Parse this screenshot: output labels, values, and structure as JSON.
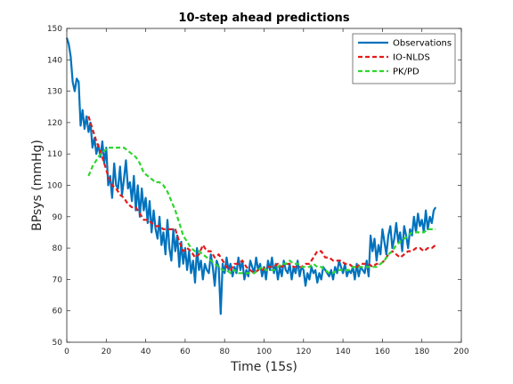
{
  "chart_data": {
    "type": "line",
    "title": "10-step ahead predictions",
    "xlabel": "Time (15s)",
    "ylabel": "BPsys (mmHg)",
    "xlim": [
      0,
      200
    ],
    "ylim": [
      50,
      150
    ],
    "xticks": [
      0,
      20,
      40,
      60,
      80,
      100,
      120,
      140,
      160,
      180,
      200
    ],
    "yticks": [
      50,
      60,
      70,
      80,
      90,
      100,
      110,
      120,
      130,
      140,
      150
    ],
    "grid": false,
    "legend_position": "top-right",
    "series": [
      {
        "name": "Observations",
        "color": "#0072BD",
        "style": "solid",
        "x": [
          0,
          1,
          2,
          3,
          4,
          5,
          6,
          7,
          8,
          9,
          10,
          11,
          12,
          13,
          14,
          15,
          16,
          17,
          18,
          19,
          20,
          21,
          22,
          23,
          24,
          25,
          26,
          27,
          28,
          29,
          30,
          31,
          32,
          33,
          34,
          35,
          36,
          37,
          38,
          39,
          40,
          41,
          42,
          43,
          44,
          45,
          46,
          47,
          48,
          49,
          50,
          51,
          52,
          53,
          54,
          55,
          56,
          57,
          58,
          59,
          60,
          61,
          62,
          63,
          64,
          65,
          66,
          67,
          68,
          69,
          70,
          71,
          72,
          73,
          74,
          75,
          76,
          77,
          78,
          79,
          80,
          81,
          82,
          83,
          84,
          85,
          86,
          87,
          88,
          89,
          90,
          91,
          92,
          93,
          94,
          95,
          96,
          97,
          98,
          99,
          100,
          101,
          102,
          103,
          104,
          105,
          106,
          107,
          108,
          109,
          110,
          111,
          112,
          113,
          114,
          115,
          116,
          117,
          118,
          119,
          120,
          121,
          122,
          123,
          124,
          125,
          126,
          127,
          128,
          129,
          130,
          131,
          132,
          133,
          134,
          135,
          136,
          137,
          138,
          139,
          140,
          141,
          142,
          143,
          144,
          145,
          146,
          147,
          148,
          149,
          150,
          151,
          152,
          153,
          154,
          155,
          156,
          157,
          158,
          159,
          160,
          161,
          162,
          163,
          164,
          165,
          166,
          167,
          168,
          169,
          170,
          171,
          172,
          173,
          174,
          175,
          176,
          177,
          178,
          179,
          180,
          181,
          182,
          183,
          184,
          185,
          186,
          187
        ],
        "y": [
          147,
          145,
          141,
          133,
          130,
          134,
          133,
          119,
          124,
          118,
          122,
          117,
          120,
          112,
          115,
          110,
          113,
          109,
          114,
          107,
          112,
          100,
          103,
          96,
          107,
          100,
          99,
          106,
          97,
          102,
          108,
          99,
          101,
          95,
          103,
          92,
          100,
          90,
          99,
          92,
          96,
          88,
          95,
          85,
          92,
          86,
          83,
          90,
          81,
          85,
          78,
          89,
          80,
          76,
          86,
          79,
          84,
          74,
          82,
          75,
          80,
          73,
          79,
          72,
          76,
          69,
          80,
          73,
          76,
          70,
          75,
          73,
          72,
          78,
          74,
          68,
          76,
          74,
          59,
          75,
          72,
          77,
          73,
          75,
          71,
          74,
          72,
          77,
          73,
          76,
          70,
          73,
          71,
          76,
          74,
          72,
          77,
          73,
          75,
          71,
          74,
          70,
          76,
          73,
          77,
          72,
          75,
          70,
          74,
          71,
          76,
          73,
          72,
          75,
          70,
          74,
          72,
          76,
          71,
          74,
          73,
          68,
          72,
          70,
          74,
          72,
          73,
          69,
          72,
          70,
          74,
          73,
          72,
          71,
          73,
          70,
          74,
          72,
          76,
          74,
          72,
          75,
          71,
          73,
          72,
          74,
          70,
          75,
          71,
          74,
          73,
          72,
          76,
          71,
          84,
          79,
          83,
          76,
          81,
          78,
          86,
          82,
          78,
          84,
          87,
          80,
          83,
          88,
          82,
          85,
          79,
          87,
          84,
          80,
          86,
          84,
          90,
          85,
          91,
          87,
          89,
          85,
          92,
          86,
          90,
          88,
          92,
          93
        ]
      },
      {
        "name": "IO-NLDS",
        "color": "#E31A1C",
        "style": "dashed",
        "x": [
          11,
          13,
          15,
          17,
          19,
          21,
          23,
          25,
          27,
          29,
          31,
          33,
          35,
          37,
          39,
          41,
          43,
          45,
          47,
          49,
          51,
          53,
          55,
          57,
          59,
          61,
          63,
          65,
          67,
          69,
          71,
          73,
          75,
          77,
          79,
          81,
          83,
          85,
          87,
          89,
          91,
          93,
          95,
          97,
          99,
          101,
          103,
          105,
          107,
          109,
          111,
          113,
          115,
          117,
          119,
          121,
          123,
          125,
          127,
          129,
          131,
          133,
          135,
          137,
          139,
          141,
          143,
          145,
          147,
          149,
          151,
          153,
          155,
          157,
          159,
          161,
          163,
          165,
          167,
          169,
          171,
          173,
          175,
          177,
          179,
          181,
          183,
          185,
          187
        ],
        "y": [
          122,
          118,
          114,
          111,
          107,
          103,
          100,
          99,
          97,
          96,
          94,
          93,
          93,
          91,
          89,
          89,
          88,
          87,
          87,
          86,
          86,
          86,
          86,
          82,
          79,
          80,
          79,
          77,
          78,
          81,
          79,
          79,
          77,
          78,
          76,
          74,
          73,
          75,
          75,
          76,
          74,
          73,
          72,
          73,
          73,
          74,
          74,
          74,
          75,
          74,
          75,
          75,
          74,
          74,
          74,
          75,
          75,
          77,
          79,
          79,
          77,
          77,
          76,
          76,
          76,
          75,
          75,
          74,
          74,
          75,
          75,
          75,
          74,
          75,
          75,
          76,
          78,
          79,
          78,
          77,
          78,
          79,
          79,
          80,
          80,
          79,
          80,
          80,
          81
        ]
      },
      {
        "name": "PK/PD",
        "color": "#2DD62D",
        "style": "dashed",
        "x": [
          11,
          13,
          15,
          17,
          19,
          21,
          23,
          25,
          27,
          29,
          31,
          33,
          35,
          37,
          39,
          41,
          43,
          45,
          47,
          49,
          51,
          53,
          55,
          57,
          59,
          61,
          63,
          65,
          67,
          69,
          71,
          73,
          75,
          77,
          79,
          81,
          83,
          85,
          87,
          89,
          91,
          93,
          95,
          97,
          99,
          101,
          103,
          105,
          107,
          109,
          111,
          113,
          115,
          117,
          119,
          121,
          123,
          125,
          127,
          129,
          131,
          133,
          135,
          137,
          139,
          141,
          143,
          145,
          147,
          149,
          151,
          153,
          155,
          157,
          159,
          161,
          163,
          165,
          167,
          169,
          171,
          173,
          175,
          177,
          179,
          181,
          183,
          185,
          187
        ],
        "y": [
          103,
          106,
          108,
          110,
          111,
          112,
          112,
          112,
          112,
          112,
          111,
          110,
          109,
          107,
          104,
          103,
          102,
          101,
          101,
          100,
          98,
          95,
          92,
          88,
          84,
          82,
          80,
          79,
          79,
          78,
          77,
          76,
          75,
          74,
          73,
          73,
          72,
          73,
          72,
          72,
          72,
          72,
          72,
          73,
          74,
          73,
          73,
          73,
          74,
          75,
          75,
          76,
          75,
          75,
          74,
          74,
          74,
          75,
          74,
          74,
          73,
          72,
          72,
          73,
          73,
          73,
          73,
          74,
          74,
          74,
          74,
          74,
          74,
          74,
          75,
          76,
          78,
          79,
          81,
          82,
          83,
          84,
          85,
          85,
          85,
          85,
          86,
          86,
          86
        ]
      }
    ]
  }
}
